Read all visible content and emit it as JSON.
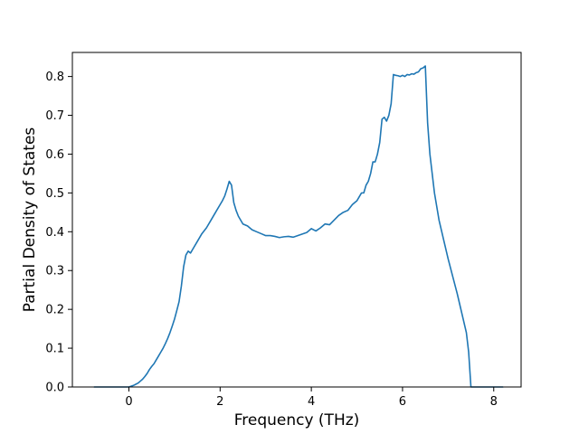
{
  "chart_data": {
    "type": "line",
    "xlabel": "Frequency (THz)",
    "ylabel": "Partial Density of States",
    "xlim": [
      -1.24,
      8.6
    ],
    "ylim": [
      0,
      0.862
    ],
    "xticks": [
      0,
      2,
      4,
      6,
      8
    ],
    "xtick_labels": [
      "0",
      "2",
      "4",
      "6",
      "8"
    ],
    "yticks": [
      0,
      0.1,
      0.2,
      0.3,
      0.4,
      0.5,
      0.6,
      0.7,
      0.8
    ],
    "ytick_labels": [
      "0.0",
      "0.1",
      "0.2",
      "0.3",
      "0.4",
      "0.5",
      "0.6",
      "0.7",
      "0.8"
    ],
    "grid": false,
    "series_color": "#1f77b4",
    "series": [
      {
        "x": [
          -0.76,
          0.0,
          0.05,
          0.1,
          0.15,
          0.2,
          0.25,
          0.3,
          0.35,
          0.4,
          0.45,
          0.5,
          0.55,
          0.6,
          0.65,
          0.7,
          0.75,
          0.8,
          0.85,
          0.9,
          0.95,
          1.0,
          1.05,
          1.1,
          1.15,
          1.2,
          1.25,
          1.3,
          1.35,
          1.4,
          1.5,
          1.6,
          1.7,
          1.8,
          1.9,
          2.0,
          2.05,
          2.1,
          2.15,
          2.2,
          2.25,
          2.3,
          2.35,
          2.4,
          2.5,
          2.6,
          2.7,
          2.8,
          2.9,
          3.0,
          3.1,
          3.2,
          3.3,
          3.4,
          3.5,
          3.6,
          3.7,
          3.8,
          3.9,
          4.0,
          4.1,
          4.2,
          4.3,
          4.4,
          4.5,
          4.6,
          4.7,
          4.8,
          4.9,
          5.0,
          5.05,
          5.1,
          5.15,
          5.2,
          5.25,
          5.3,
          5.35,
          5.4,
          5.45,
          5.5,
          5.55,
          5.6,
          5.65,
          5.7,
          5.75,
          5.8,
          5.85,
          5.9,
          5.95,
          6.0,
          6.05,
          6.1,
          6.15,
          6.2,
          6.25,
          6.3,
          6.35,
          6.4,
          6.45,
          6.5,
          6.55,
          6.6,
          6.7,
          6.8,
          6.9,
          7.0,
          7.1,
          7.2,
          7.3,
          7.4,
          7.45,
          7.5,
          8.2
        ],
        "y": [
          0.0,
          0.0,
          0.002,
          0.004,
          0.007,
          0.01,
          0.015,
          0.02,
          0.027,
          0.035,
          0.045,
          0.053,
          0.06,
          0.07,
          0.08,
          0.09,
          0.1,
          0.112,
          0.125,
          0.14,
          0.157,
          0.175,
          0.197,
          0.22,
          0.26,
          0.31,
          0.34,
          0.35,
          0.345,
          0.355,
          0.375,
          0.395,
          0.41,
          0.43,
          0.45,
          0.47,
          0.48,
          0.492,
          0.51,
          0.53,
          0.52,
          0.475,
          0.455,
          0.44,
          0.42,
          0.415,
          0.405,
          0.4,
          0.395,
          0.39,
          0.39,
          0.388,
          0.385,
          0.387,
          0.388,
          0.386,
          0.39,
          0.394,
          0.398,
          0.408,
          0.402,
          0.41,
          0.42,
          0.418,
          0.43,
          0.442,
          0.45,
          0.455,
          0.47,
          0.48,
          0.49,
          0.5,
          0.5,
          0.52,
          0.53,
          0.55,
          0.58,
          0.58,
          0.6,
          0.63,
          0.69,
          0.695,
          0.685,
          0.7,
          0.73,
          0.805,
          0.803,
          0.802,
          0.8,
          0.803,
          0.8,
          0.805,
          0.804,
          0.807,
          0.806,
          0.81,
          0.812,
          0.82,
          0.822,
          0.827,
          0.68,
          0.6,
          0.5,
          0.43,
          0.38,
          0.33,
          0.285,
          0.24,
          0.19,
          0.14,
          0.09,
          0.0,
          0.0
        ]
      }
    ]
  }
}
